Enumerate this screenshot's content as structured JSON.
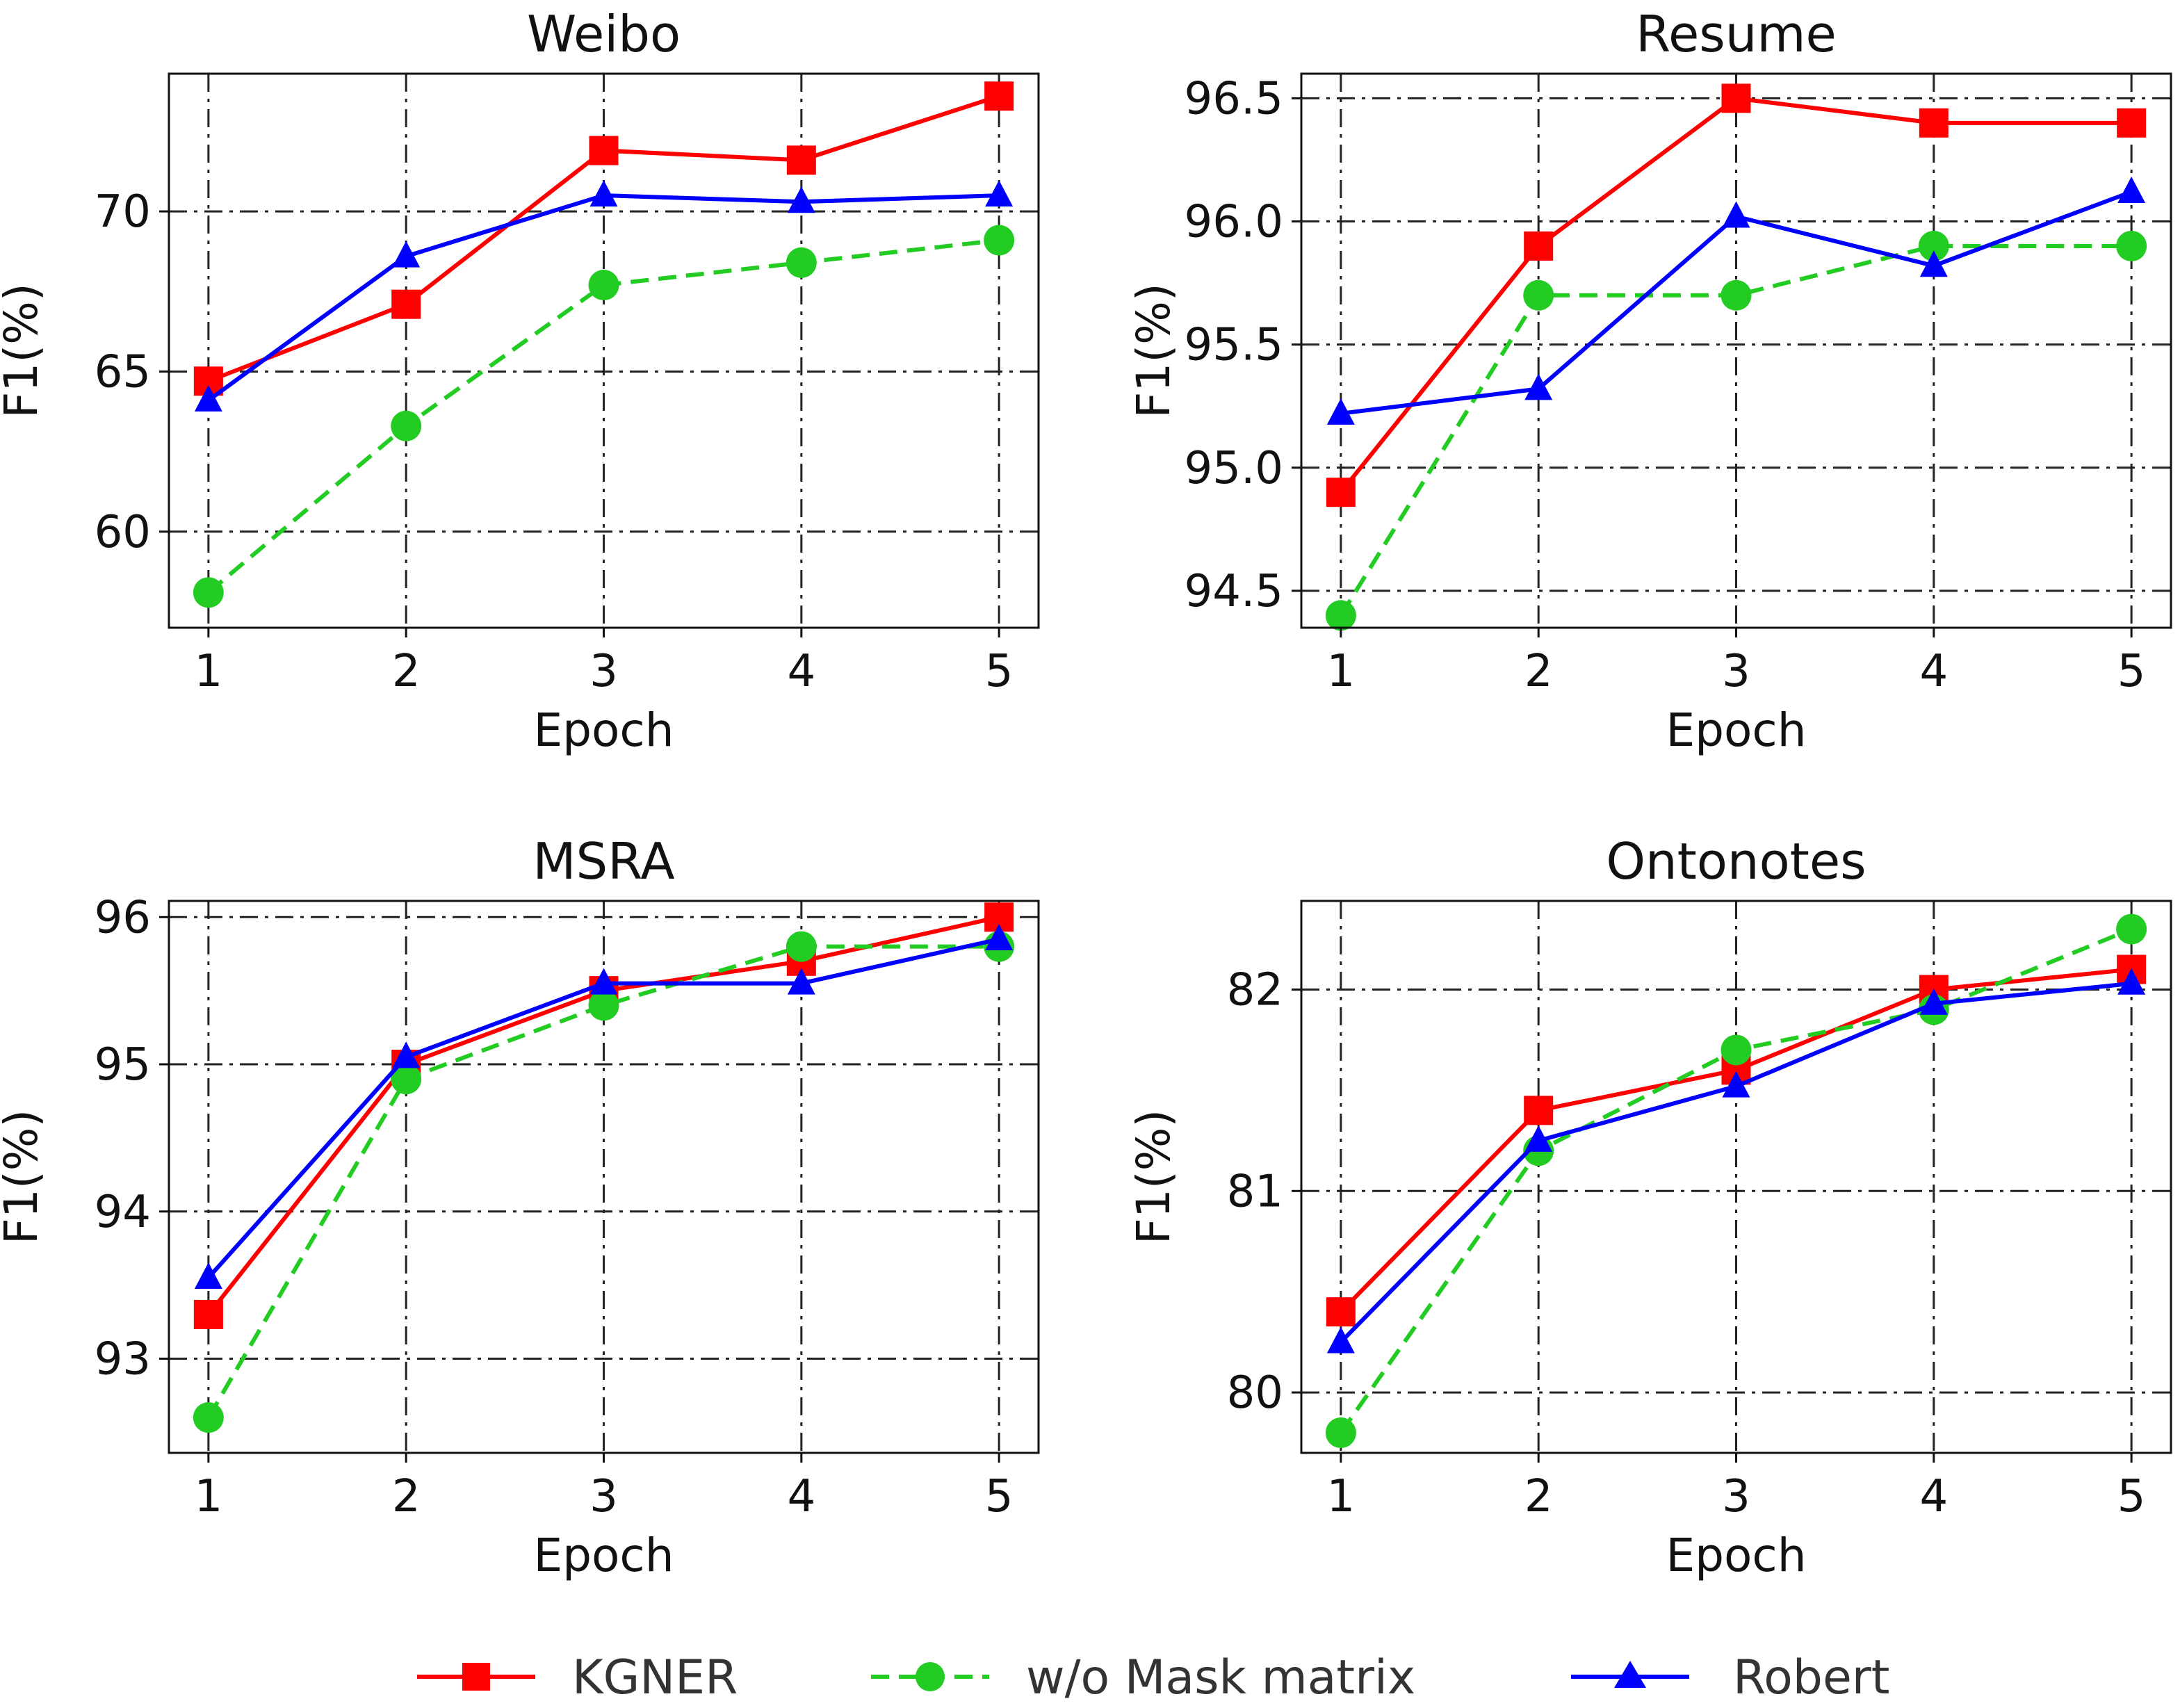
{
  "chart_data": [
    {
      "type": "line",
      "title": "Weibo",
      "xlabel": "Epoch",
      "ylabel": "F1(%)",
      "x": [
        1,
        2,
        3,
        4,
        5
      ],
      "xlim": [
        0.8,
        5.2
      ],
      "ylim": [
        57,
        74.3
      ],
      "yticks": [
        60,
        65,
        70
      ],
      "grid": true,
      "series": [
        {
          "name": "KGNER",
          "values": [
            64.7,
            67.1,
            71.9,
            71.6,
            73.6
          ]
        },
        {
          "name": "w/o Mask matrix",
          "values": [
            58.1,
            63.3,
            67.7,
            68.4,
            69.1
          ]
        },
        {
          "name": "Robert",
          "values": [
            64.1,
            68.6,
            70.5,
            70.3,
            70.5
          ]
        }
      ]
    },
    {
      "type": "line",
      "title": "Resume",
      "xlabel": "Epoch",
      "ylabel": "F1(%)",
      "x": [
        1,
        2,
        3,
        4,
        5
      ],
      "xlim": [
        0.8,
        5.2
      ],
      "ylim": [
        94.35,
        96.6
      ],
      "yticks": [
        94.5,
        95.0,
        95.5,
        96.0,
        96.5
      ],
      "grid": true,
      "series": [
        {
          "name": "KGNER",
          "values": [
            94.9,
            95.9,
            96.5,
            96.4,
            96.4
          ]
        },
        {
          "name": "w/o Mask matrix",
          "values": [
            94.4,
            95.7,
            95.7,
            95.9,
            95.9
          ]
        },
        {
          "name": "Robert",
          "values": [
            95.22,
            95.32,
            96.02,
            95.82,
            96.12
          ]
        }
      ]
    },
    {
      "type": "line",
      "title": "MSRA",
      "xlabel": "Epoch",
      "ylabel": "F1(%)",
      "x": [
        1,
        2,
        3,
        4,
        5
      ],
      "xlim": [
        0.8,
        5.2
      ],
      "ylim": [
        92.36,
        96.11
      ],
      "yticks": [
        93,
        94,
        95,
        96
      ],
      "grid": true,
      "series": [
        {
          "name": "KGNER",
          "values": [
            93.3,
            95.0,
            95.5,
            95.7,
            96.0
          ]
        },
        {
          "name": "w/o Mask matrix",
          "values": [
            92.6,
            94.9,
            95.4,
            95.8,
            95.8
          ]
        },
        {
          "name": "Robert",
          "values": [
            93.55,
            95.05,
            95.55,
            95.55,
            95.85
          ]
        }
      ]
    },
    {
      "type": "line",
      "title": "Ontonotes",
      "xlabel": "Epoch",
      "ylabel": "F1(%)",
      "x": [
        1,
        2,
        3,
        4,
        5
      ],
      "xlim": [
        0.8,
        5.2
      ],
      "ylim": [
        79.7,
        82.44
      ],
      "yticks": [
        80,
        81,
        82
      ],
      "grid": true,
      "series": [
        {
          "name": "KGNER",
          "values": [
            80.4,
            81.4,
            81.6,
            82.0,
            82.1
          ]
        },
        {
          "name": "w/o Mask matrix",
          "values": [
            79.8,
            81.2,
            81.7,
            81.9,
            82.3
          ]
        },
        {
          "name": "Robert",
          "values": [
            80.25,
            81.25,
            81.52,
            81.93,
            82.03
          ]
        }
      ]
    }
  ],
  "legend": {
    "position": "bottom-center",
    "items": [
      {
        "label": "KGNER",
        "color": "#ff0000",
        "marker": "square",
        "line": "solid"
      },
      {
        "label": "w/o Mask matrix",
        "color": "#22cc22",
        "marker": "circle",
        "line": "dashed"
      },
      {
        "label": "Robert",
        "color": "#0000ff",
        "marker": "triangle",
        "line": "solid"
      }
    ]
  },
  "colors": {
    "KGNER": "#ff0000",
    "w/o Mask matrix": "#22cc22",
    "Robert": "#0000ff"
  }
}
